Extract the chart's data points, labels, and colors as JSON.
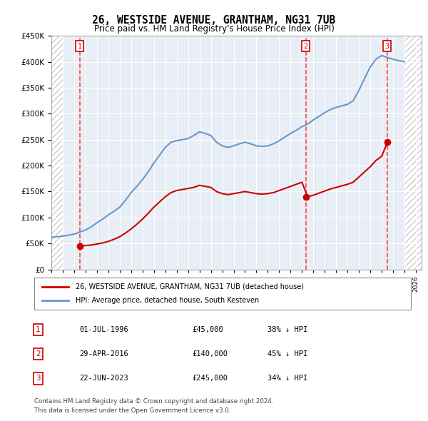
{
  "title": "26, WESTSIDE AVENUE, GRANTHAM, NG31 7UB",
  "subtitle": "Price paid vs. HM Land Registry's House Price Index (HPI)",
  "legend_line1": "26, WESTSIDE AVENUE, GRANTHAM, NG31 7UB (detached house)",
  "legend_line2": "HPI: Average price, detached house, South Kesteven",
  "footer1": "Contains HM Land Registry data © Crown copyright and database right 2024.",
  "footer2": "This data is licensed under the Open Government Licence v3.0.",
  "hpi_color": "#6699cc",
  "price_color": "#cc0000",
  "sale_color": "#cc0000",
  "marker_bg": "#cc0000",
  "vline_color": "#ff0000",
  "box_color": "#cc0000",
  "ylim": [
    0,
    450000
  ],
  "yticks": [
    0,
    50000,
    100000,
    150000,
    200000,
    250000,
    300000,
    350000,
    400000,
    450000
  ],
  "xlim_start": 1994.0,
  "xlim_end": 2026.5,
  "sale_dates": [
    1996.5,
    2016.33,
    2023.47
  ],
  "sale_prices": [
    45000,
    140000,
    245000
  ],
  "sale_labels": [
    "1",
    "2",
    "3"
  ],
  "sale_text": [
    [
      "1",
      "01-JUL-1996",
      "£45,000",
      "38% ↓ HPI"
    ],
    [
      "2",
      "29-APR-2016",
      "£140,000",
      "45% ↓ HPI"
    ],
    [
      "3",
      "22-JUN-2023",
      "£245,000",
      "34% ↓ HPI"
    ]
  ],
  "hpi_x": [
    1994.0,
    1994.5,
    1995.0,
    1995.5,
    1996.0,
    1996.5,
    1997.0,
    1997.5,
    1998.0,
    1998.5,
    1999.0,
    1999.5,
    2000.0,
    2000.5,
    2001.0,
    2001.5,
    2002.0,
    2002.5,
    2003.0,
    2003.5,
    2004.0,
    2004.5,
    2005.0,
    2005.5,
    2006.0,
    2006.5,
    2007.0,
    2007.5,
    2008.0,
    2008.5,
    2009.0,
    2009.5,
    2010.0,
    2010.5,
    2011.0,
    2011.5,
    2012.0,
    2012.5,
    2013.0,
    2013.5,
    2014.0,
    2014.5,
    2015.0,
    2015.5,
    2016.0,
    2016.5,
    2017.0,
    2017.5,
    2018.0,
    2018.5,
    2019.0,
    2019.5,
    2020.0,
    2020.5,
    2021.0,
    2021.5,
    2022.0,
    2022.5,
    2023.0,
    2023.5,
    2024.0,
    2024.5,
    2025.0
  ],
  "hpi_y": [
    62000,
    63000,
    64000,
    66000,
    68000,
    72000,
    76000,
    82000,
    90000,
    97000,
    105000,
    112000,
    120000,
    133000,
    148000,
    160000,
    173000,
    188000,
    205000,
    220000,
    235000,
    245000,
    248000,
    250000,
    252000,
    258000,
    265000,
    262000,
    258000,
    245000,
    238000,
    235000,
    238000,
    242000,
    245000,
    242000,
    238000,
    237000,
    238000,
    242000,
    248000,
    255000,
    262000,
    268000,
    275000,
    280000,
    288000,
    295000,
    302000,
    308000,
    312000,
    315000,
    318000,
    325000,
    345000,
    368000,
    390000,
    405000,
    412000,
    408000,
    405000,
    402000,
    400000
  ],
  "price_x": [
    1994.0,
    1994.5,
    1995.0,
    1995.5,
    1996.0,
    1996.5,
    1997.0,
    1997.5,
    1998.0,
    1998.5,
    1999.0,
    1999.5,
    2000.0,
    2000.5,
    2001.0,
    2001.5,
    2002.0,
    2002.5,
    2003.0,
    2003.5,
    2004.0,
    2004.5,
    2005.0,
    2005.5,
    2006.0,
    2006.5,
    2007.0,
    2007.5,
    2008.0,
    2008.5,
    2009.0,
    2009.5,
    2010.0,
    2010.5,
    2011.0,
    2011.5,
    2012.0,
    2012.5,
    2013.0,
    2013.5,
    2014.0,
    2014.5,
    2015.0,
    2015.5,
    2016.0,
    2016.5,
    2017.0,
    2017.5,
    2018.0,
    2018.5,
    2019.0,
    2019.5,
    2020.0,
    2020.5,
    2021.0,
    2021.5,
    2022.0,
    2022.5,
    2023.0,
    2023.5,
    2024.0,
    2024.5,
    2025.0
  ],
  "price_y": [
    null,
    null,
    null,
    null,
    null,
    45000,
    46000,
    47000,
    49000,
    51000,
    54000,
    58000,
    63000,
    70000,
    78000,
    87000,
    97000,
    108000,
    120000,
    130000,
    140000,
    148000,
    152000,
    154000,
    156000,
    158000,
    162000,
    160000,
    158000,
    150000,
    146000,
    144000,
    146000,
    148000,
    150000,
    148000,
    146000,
    145000,
    146000,
    148000,
    152000,
    156000,
    160000,
    164000,
    168000,
    140000,
    143000,
    147000,
    151000,
    155000,
    158000,
    161000,
    164000,
    168000,
    178000,
    188000,
    198000,
    210000,
    218000,
    245000,
    null,
    null,
    null
  ]
}
